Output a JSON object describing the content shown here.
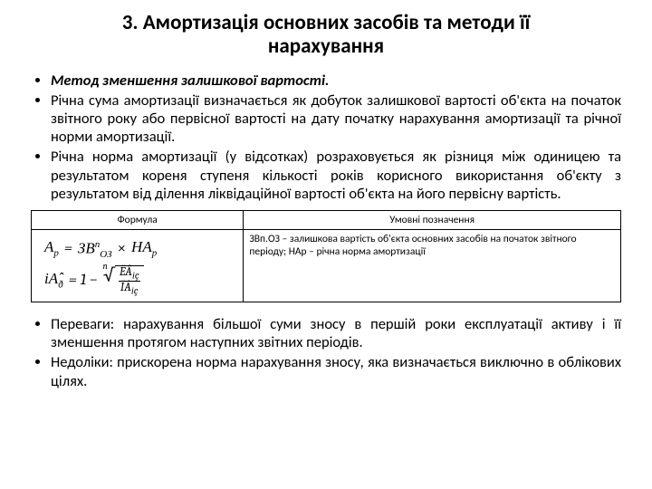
{
  "title": "3. Амортизація основних засобів та методи її нарахування",
  "bullets_top": {
    "b1": "Метод зменшення залишкової вартості.",
    "b2": "Річна сума амортизації визначається як добуток залишкової вартості об'єкта на початок звітного року або первісної вартості на дату початку нарахування амортизації та річної норми амортизації.",
    "b3": "Річна норма амортизації (у відсотках) розраховується як різниця між одиницею та результатом кореня ступеня кількості років корисного використання об'єкту з результатом від ділення ліквідаційної вартості об'єкта на його первісну вартість."
  },
  "table": {
    "head": {
      "c1": "Формула",
      "c2": "Умовні позначення"
    },
    "desc": "ЗВп.ОЗ – залишкова вартість об'єкта основних засобів на початок звітного періоду; НАр – річна норма амортизації",
    "formula1": {
      "lhs_sym": "А",
      "lhs_sub": "р",
      "eq": "=",
      "t1_sym": "ЗВ",
      "t1_sup": "п",
      "t1_sub": "ОЗ",
      "mul": "×",
      "t2_sym": "НА",
      "t2_sub": "р"
    },
    "formula2": {
      "lhs_sym": "іА̂",
      "lhs_sub": "ð",
      "eq": "= 1 −",
      "root_idx": "n",
      "num": "ËÂ̂",
      "num_sub": "іç",
      "den": "ÏÂ",
      "den_sub": "іç"
    }
  },
  "bullets_bottom": {
    "b1": "Переваги: нарахування більшої суми зносу в першій роки експлуатації активу і її зменшення протягом наступних звітних періодів.",
    "b2": "Недоліки: прискорена норма нарахування зносу, яка визначається виключно в облікових цілях."
  }
}
